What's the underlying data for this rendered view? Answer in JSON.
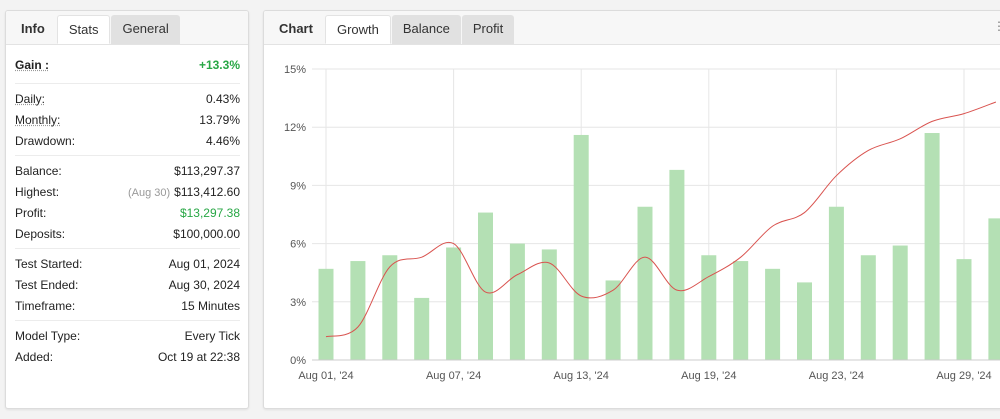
{
  "left_tabs": [
    {
      "label": "Info"
    },
    {
      "label": "Stats"
    },
    {
      "label": "General"
    }
  ],
  "right_tabs": [
    {
      "label": "Chart"
    },
    {
      "label": "Growth"
    },
    {
      "label": "Balance"
    },
    {
      "label": "Profit"
    }
  ],
  "stats": {
    "gain": {
      "label": "Gain :",
      "value": "+13.3%"
    },
    "daily": {
      "label": "Daily:",
      "value": "0.43%"
    },
    "monthly": {
      "label": "Monthly:",
      "value": "13.79%"
    },
    "drawdown": {
      "label": "Drawdown:",
      "value": "4.46%"
    },
    "balance": {
      "label": "Balance:",
      "value": "$113,297.37"
    },
    "highest": {
      "label": "Highest:",
      "date": "(Aug 30)",
      "value": "$113,412.60"
    },
    "profit": {
      "label": "Profit:",
      "value": "$13,297.38"
    },
    "deposits": {
      "label": "Deposits:",
      "value": "$100,000.00"
    },
    "test_started": {
      "label": "Test Started:",
      "value": "Aug 01, 2024"
    },
    "test_ended": {
      "label": "Test Ended:",
      "value": "Aug 30, 2024"
    },
    "timeframe": {
      "label": "Timeframe:",
      "value": "15 Minutes"
    },
    "model_type": {
      "label": "Model Type:",
      "value": "Every Tick"
    },
    "added": {
      "label": "Added:",
      "value": "Oct 19 at 22:38"
    }
  },
  "colors": {
    "bar": "#b4e0b4",
    "line": "#d9534f",
    "gain_green": "#28a745"
  },
  "chart_data": {
    "type": "bar",
    "y_ticks": [
      "0%",
      "3%",
      "6%",
      "9%",
      "12%",
      "15%"
    ],
    "ylim": [
      0,
      15
    ],
    "x_tick_labels": [
      {
        "day": 1,
        "label": "Aug 01, '24"
      },
      {
        "day": 5,
        "label": "Aug 07, '24"
      },
      {
        "day": 9,
        "label": "Aug 13, '24"
      },
      {
        "day": 13,
        "label": "Aug 19, '24"
      },
      {
        "day": 17,
        "label": "Aug 23, '24"
      },
      {
        "day": 21,
        "label": "Aug 29, '24"
      }
    ],
    "bars": [
      4.7,
      5.1,
      5.4,
      3.2,
      5.8,
      7.6,
      6.0,
      5.7,
      11.6,
      4.1,
      7.9,
      9.8,
      5.4,
      5.1,
      4.7,
      4.0,
      7.9,
      5.4,
      5.9,
      11.7,
      5.2,
      7.3
    ],
    "growth_line": [
      1.2,
      1.7,
      4.8,
      5.3,
      6.0,
      3.5,
      4.4,
      5.0,
      3.3,
      3.6,
      5.3,
      3.6,
      4.3,
      5.3,
      6.9,
      7.6,
      9.5,
      10.8,
      11.4,
      12.3,
      12.7,
      13.3
    ]
  }
}
